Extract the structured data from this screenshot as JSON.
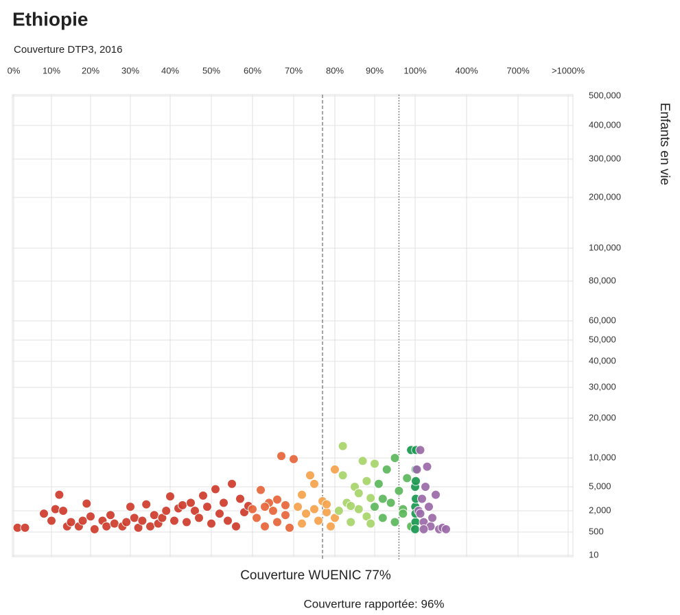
{
  "chart_data": {
    "type": "scatter",
    "title": "Ethiopie",
    "subtitle": "Couverture DTP3, 2016",
    "y_label": "Enfants en vie",
    "grid": true,
    "xticks": [
      {
        "value": 0,
        "label": "0%"
      },
      {
        "value": 10,
        "label": "10%"
      },
      {
        "value": 20,
        "label": "20%"
      },
      {
        "value": 30,
        "label": "30%"
      },
      {
        "value": 40,
        "label": "40%"
      },
      {
        "value": 50,
        "label": "50%"
      },
      {
        "value": 60,
        "label": "60%"
      },
      {
        "value": 70,
        "label": "70%"
      },
      {
        "value": 80,
        "label": "80%"
      },
      {
        "value": 90,
        "label": "90%"
      },
      {
        "value": 100,
        "label": "100%"
      },
      {
        "value": 400,
        "label": "400%"
      },
      {
        "value": 700,
        "label": "700%"
      },
      {
        "value": 1000,
        "label": ">1000%"
      }
    ],
    "yticks": [
      {
        "value": 10,
        "label": "10"
      },
      {
        "value": 500,
        "label": "500"
      },
      {
        "value": 2000,
        "label": "2,000"
      },
      {
        "value": 5000,
        "label": "5,000"
      },
      {
        "value": 10000,
        "label": "10,000"
      },
      {
        "value": 20000,
        "label": "20,000"
      },
      {
        "value": 30000,
        "label": "30,000"
      },
      {
        "value": 40000,
        "label": "40,000"
      },
      {
        "value": 50000,
        "label": "50,000"
      },
      {
        "value": 60000,
        "label": "60,000"
      },
      {
        "value": 80000,
        "label": "80,000"
      },
      {
        "value": 100000,
        "label": "100,000"
      },
      {
        "value": 200000,
        "label": "200,000"
      },
      {
        "value": 300000,
        "label": "300,000"
      },
      {
        "value": 400000,
        "label": "400,000"
      },
      {
        "value": 500000,
        "label": "500,000"
      }
    ],
    "reference_lines": [
      {
        "value": 77,
        "label": "Couverture WUENIC 77%",
        "style": "dashed"
      },
      {
        "value": 96,
        "label": "Couverture rapportée: 96%",
        "style": "dotted"
      }
    ],
    "groups": [
      {
        "color": "#cf3b2c",
        "x": [
          1,
          3,
          8,
          10,
          11,
          12,
          13,
          14,
          15,
          17,
          18,
          19,
          20,
          21,
          23,
          24,
          25,
          26,
          28,
          29,
          30,
          31,
          32,
          33,
          34,
          35,
          36,
          37,
          38,
          39,
          40,
          41,
          42,
          43,
          44,
          45,
          46,
          47,
          48,
          49,
          50,
          51,
          52,
          53,
          54,
          55,
          56,
          57,
          58,
          59
        ],
        "y": [
          800,
          800,
          1800,
          1300,
          2200,
          4000,
          2000,
          900,
          1200,
          900,
          1300,
          2900,
          1600,
          700,
          1300,
          900,
          1700,
          1100,
          900,
          1200,
          2500,
          1500,
          800,
          1300,
          2800,
          900,
          1700,
          1100,
          1500,
          2000,
          3800,
          1300,
          2300,
          2700,
          1200,
          3000,
          2000,
          1500,
          3900,
          2500,
          1100,
          4700,
          1800,
          3000,
          1300,
          5500,
          900,
          3500,
          1900,
          2600
        ]
      },
      {
        "color": "#e8663a",
        "x": [
          60,
          61,
          62,
          63,
          64,
          65,
          66,
          67,
          68,
          69,
          70,
          66,
          63,
          68
        ],
        "y": [
          2200,
          1500,
          4600,
          900,
          3000,
          2000,
          1200,
          10500,
          2700,
          800,
          9800,
          3400,
          2500,
          1700
        ]
      },
      {
        "color": "#f5a24c",
        "x": [
          71,
          72,
          73,
          74,
          75,
          76,
          77,
          78,
          79,
          80,
          72,
          75,
          78,
          80
        ],
        "y": [
          2500,
          4000,
          1800,
          7000,
          2200,
          1300,
          3200,
          1900,
          900,
          8000,
          1100,
          5500,
          2800,
          1500
        ]
      },
      {
        "color": "#a8d46a",
        "x": [
          81,
          82,
          83,
          84,
          85,
          86,
          87,
          88,
          89,
          90,
          82,
          84,
          86,
          88,
          89
        ],
        "y": [
          2000,
          13000,
          3000,
          1200,
          5000,
          2200,
          9500,
          1600,
          3600,
          9000,
          7000,
          2600,
          4200,
          6000,
          1100
        ]
      },
      {
        "color": "#5db85c",
        "x": [
          90,
          91,
          92,
          93,
          94,
          95,
          96,
          97,
          98,
          99,
          92,
          95,
          97
        ],
        "y": [
          2500,
          5500,
          1500,
          8000,
          3000,
          1200,
          4500,
          2200,
          6500,
          900,
          3500,
          10000,
          1800
        ]
      },
      {
        "color": "#1a9850",
        "x": [
          99,
          100,
          101,
          102,
          103,
          104,
          105,
          100,
          102,
          104
        ],
        "y": [
          12000,
          5000,
          2500,
          1200,
          8000,
          3500,
          12000,
          700,
          1800,
          6000
        ]
      },
      {
        "color": "#9b6aa8",
        "x": [
          110,
          120,
          130,
          140,
          150,
          160,
          170,
          180,
          190,
          200,
          220,
          240,
          260,
          280,
          130,
          150
        ],
        "y": [
          8000,
          2000,
          12000,
          3500,
          1200,
          5000,
          8500,
          2500,
          900,
          1500,
          4000,
          700,
          800,
          700,
          1800,
          700
        ]
      }
    ]
  }
}
